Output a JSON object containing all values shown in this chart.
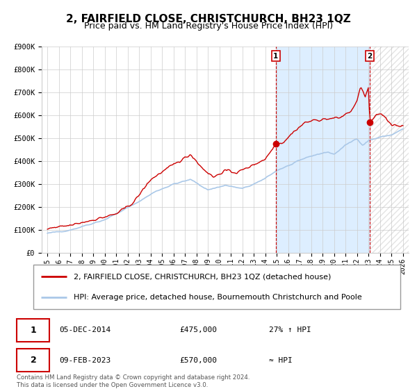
{
  "title": "2, FAIRFIELD CLOSE, CHRISTCHURCH, BH23 1QZ",
  "subtitle": "Price paid vs. HM Land Registry's House Price Index (HPI)",
  "title_fontsize": 11,
  "subtitle_fontsize": 9,
  "background_color": "#ffffff",
  "plot_bg_color": "#ffffff",
  "grid_color": "#cccccc",
  "hpi_line_color": "#aac8e8",
  "price_line_color": "#cc0000",
  "highlight_bg_color": "#ddeeff",
  "vline_color": "#cc0000",
  "marker_color": "#cc0000",
  "sale1_date_num": 2014.92,
  "sale1_price": 475000,
  "sale2_date_num": 2023.11,
  "sale2_price": 570000,
  "ylim": [
    0,
    900000
  ],
  "xlim_start": 1994.5,
  "xlim_end": 2026.5,
  "ytick_values": [
    0,
    100000,
    200000,
    300000,
    400000,
    500000,
    600000,
    700000,
    800000,
    900000
  ],
  "ytick_labels": [
    "£0",
    "£100K",
    "£200K",
    "£300K",
    "£400K",
    "£500K",
    "£600K",
    "£700K",
    "£800K",
    "£900K"
  ],
  "xtick_years": [
    1995,
    1996,
    1997,
    1998,
    1999,
    2000,
    2001,
    2002,
    2003,
    2004,
    2005,
    2006,
    2007,
    2008,
    2009,
    2010,
    2011,
    2012,
    2013,
    2014,
    2015,
    2016,
    2017,
    2018,
    2019,
    2020,
    2021,
    2022,
    2023,
    2024,
    2025,
    2026
  ],
  "legend_line1": "2, FAIRFIELD CLOSE, CHRISTCHURCH, BH23 1QZ (detached house)",
  "legend_line2": "HPI: Average price, detached house, Bournemouth Christchurch and Poole",
  "annotation1_label": "1",
  "annotation1_date": "05-DEC-2014",
  "annotation1_price": "£475,000",
  "annotation1_hpi": "27% ↑ HPI",
  "annotation2_label": "2",
  "annotation2_date": "09-FEB-2023",
  "annotation2_price": "£570,000",
  "annotation2_hpi": "≈ HPI",
  "footer": "Contains HM Land Registry data © Crown copyright and database right 2024.\nThis data is licensed under the Open Government Licence v3.0."
}
